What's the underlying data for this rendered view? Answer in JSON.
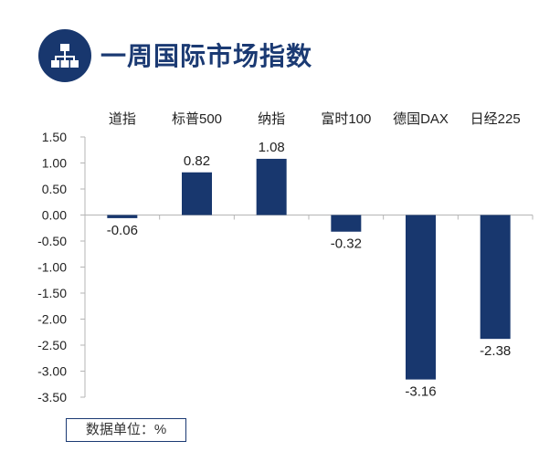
{
  "header": {
    "title": "一周国际市场指数",
    "icon": "hierarchy-icon",
    "icon_bg_color": "#18376e"
  },
  "unit_note": "数据单位：%",
  "chart_data": {
    "type": "bar",
    "categories": [
      "道指",
      "标普500",
      "纳指",
      "富时100",
      "德国DAX",
      "日经225"
    ],
    "values": [
      -0.06,
      0.82,
      1.08,
      -0.32,
      -3.16,
      -2.38
    ],
    "value_labels": [
      "-0.06",
      "0.82",
      "1.08",
      "-0.32",
      "-3.16",
      "-2.38"
    ],
    "ylim": [
      -3.5,
      1.5
    ],
    "yticks": [
      1.5,
      1.0,
      0.5,
      0.0,
      -0.5,
      -1.0,
      -1.5,
      -2.0,
      -2.5,
      -3.0,
      -3.5
    ],
    "ytick_labels": [
      "1.50",
      "1.00",
      "0.50",
      "0.00",
      "-0.50",
      "-1.00",
      "-1.50",
      "-2.00",
      "-2.50",
      "-3.00",
      "-3.50"
    ],
    "category_position": "top",
    "bar_color": "#18376e",
    "grid": false,
    "legend": "none",
    "title": "",
    "xlabel": "",
    "ylabel": ""
  }
}
